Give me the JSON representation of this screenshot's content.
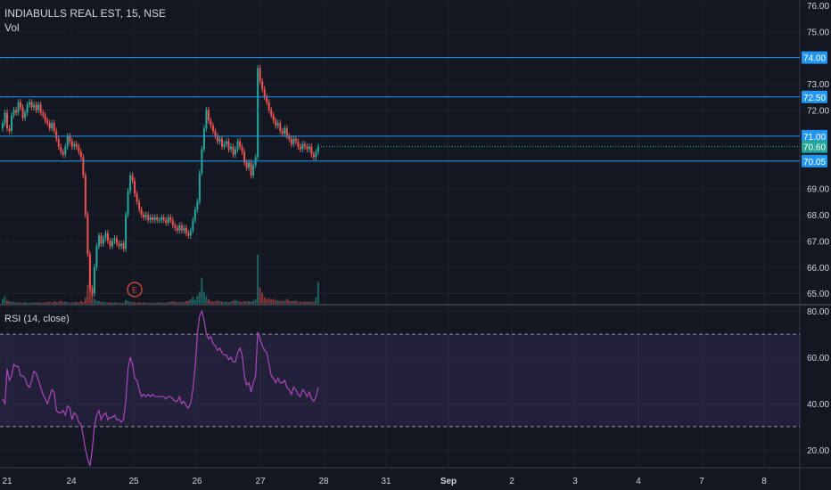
{
  "header": {
    "symbol": "INDIABULLS REAL EST, 15, NSE",
    "volume_label": "Vol",
    "rsi_label": "RSI (14, close)",
    "earnings_marker": "E"
  },
  "colors": {
    "background": "#131722",
    "grid": "#1e222d",
    "axis_text": "#d1d4dc",
    "up": "#26a69a",
    "down": "#ef5350",
    "hline": "#2196f3",
    "rsi_line": "#ab47bc",
    "rsi_band": "#7e57c2",
    "earnings": "#c2453a"
  },
  "chart_data": [
    {
      "type": "candlestick",
      "title": "INDIABULLS REAL EST, 15, NSE",
      "ylim": [
        64.6,
        76.2
      ],
      "y_ticks": [
        "65.00",
        "66.00",
        "67.00",
        "68.00",
        "69.00",
        "70.00",
        "71.00",
        "72.00",
        "73.00",
        "74.00",
        "75.00",
        "76.00"
      ],
      "x_ticks": [
        "21",
        "24",
        "25",
        "26",
        "27",
        "28",
        "31",
        "Sep",
        "2",
        "3",
        "4",
        "7",
        "8"
      ],
      "horizontal_lines": [
        {
          "price": 74.0,
          "label": "74.00"
        },
        {
          "price": 72.5,
          "label": "72.50"
        },
        {
          "price": 71.0,
          "label": "71.00"
        },
        {
          "price": 70.05,
          "label": "70.05"
        }
      ],
      "last_price": {
        "price": 70.6,
        "label": "70.60"
      },
      "close_series": [
        71.5,
        71.9,
        71.3,
        71.2,
        71.8,
        72.0,
        71.9,
        72.3,
        72.1,
        71.7,
        71.9,
        72.2,
        72.3,
        72.1,
        72.2,
        72.0,
        72.2,
        71.9,
        71.8,
        71.6,
        71.5,
        71.3,
        71.5,
        71.2,
        70.9,
        70.6,
        70.4,
        70.3,
        70.6,
        71.0,
        70.8,
        70.6,
        70.7,
        70.6,
        70.4,
        70.2,
        69.5,
        68.0,
        66.5,
        65.2,
        65.0,
        66.0,
        66.8,
        67.2,
        66.9,
        67.1,
        67.3,
        67.0,
        66.8,
        67.0,
        67.1,
        66.9,
        66.8,
        66.9,
        66.7,
        68.0,
        68.9,
        69.5,
        69.3,
        68.8,
        68.5,
        68.2,
        68.0,
        67.9,
        68.0,
        67.8,
        67.9,
        67.8,
        67.9,
        67.8,
        67.8,
        67.9,
        67.8,
        67.7,
        67.9,
        67.8,
        67.6,
        67.5,
        67.4,
        67.6,
        67.4,
        67.5,
        67.3,
        67.2,
        67.4,
        67.8,
        68.2,
        68.5,
        69.6,
        70.5,
        71.3,
        72.0,
        71.6,
        71.4,
        71.2,
        71.0,
        70.8,
        70.9,
        70.6,
        70.7,
        70.8,
        70.5,
        70.6,
        70.3,
        70.5,
        70.8,
        70.6,
        70.4,
        70.0,
        69.8,
        70.0,
        69.5,
        69.9,
        70.2,
        73.6,
        73.1,
        72.8,
        72.5,
        72.3,
        72.0,
        71.8,
        71.6,
        71.4,
        71.5,
        71.2,
        71.1,
        71.3,
        71.0,
        70.9,
        70.7,
        70.9,
        70.8,
        70.6,
        70.5,
        70.7,
        70.6,
        70.5,
        70.6,
        70.3,
        70.2,
        70.4,
        70.6
      ],
      "volume_series": [
        9,
        14,
        6,
        5,
        3,
        4,
        2,
        3,
        2,
        2,
        3,
        2,
        2,
        2,
        3,
        2,
        3,
        2,
        2,
        3,
        3,
        4,
        2,
        5,
        3,
        4,
        6,
        3,
        4,
        3,
        2,
        2,
        3,
        4,
        2,
        5,
        3,
        11,
        35,
        80,
        20,
        9,
        6,
        5,
        4,
        3,
        3,
        2,
        3,
        2,
        3,
        2,
        2,
        2,
        2,
        7,
        5,
        4,
        3,
        3,
        2,
        3,
        2,
        3,
        2,
        2,
        2,
        2,
        2,
        2,
        3,
        2,
        2,
        2,
        4,
        3,
        5,
        4,
        3,
        3,
        3,
        4,
        5,
        6,
        8,
        13,
        7,
        14,
        22,
        48,
        22,
        14,
        8,
        5,
        4,
        4,
        6,
        5,
        4,
        3,
        4,
        3,
        4,
        6,
        7,
        5,
        4,
        3,
        5,
        4,
        5,
        4,
        6,
        8,
        90,
        30,
        20,
        12,
        9,
        10,
        8,
        9,
        6,
        7,
        5,
        6,
        5,
        9,
        6,
        5,
        5,
        6,
        4,
        4,
        3,
        5,
        4,
        4,
        3,
        4,
        12,
        40
      ],
      "volume_scale_max": 90
    },
    {
      "type": "line",
      "title": "RSI (14, close)",
      "ylim": [
        13,
        82
      ],
      "y_ticks": [
        "20.00",
        "40.00",
        "60.00",
        "80.00"
      ],
      "band": [
        30,
        70
      ],
      "midline": 50,
      "values": [
        42,
        40,
        55,
        50,
        52,
        57,
        56,
        56,
        52,
        52,
        51,
        48,
        47,
        50,
        54,
        53,
        50,
        47,
        44,
        42,
        40,
        43,
        46,
        45,
        37,
        36,
        36,
        37,
        35,
        39,
        38,
        33,
        36,
        35,
        32,
        31,
        26,
        20,
        16,
        13,
        20,
        30,
        35,
        37,
        33,
        35,
        36,
        33,
        34,
        34,
        35,
        33,
        33,
        32,
        33,
        41,
        55,
        60,
        57,
        51,
        50,
        46,
        43,
        44,
        43,
        44,
        43,
        44,
        43,
        43,
        43,
        43,
        43,
        42,
        43,
        43,
        42,
        41,
        41,
        43,
        40,
        41,
        39,
        38,
        40,
        46,
        56,
        70,
        78,
        80,
        76,
        70,
        68,
        69,
        66,
        65,
        63,
        64,
        62,
        61,
        61,
        59,
        60,
        58,
        58,
        62,
        64,
        61,
        52,
        48,
        49,
        45,
        49,
        52,
        71,
        68,
        65,
        63,
        62,
        57,
        52,
        51,
        49,
        51,
        49,
        49,
        50,
        47,
        46,
        44,
        47,
        46,
        44,
        43,
        46,
        45,
        43,
        45,
        42,
        41,
        43,
        47
      ]
    }
  ]
}
